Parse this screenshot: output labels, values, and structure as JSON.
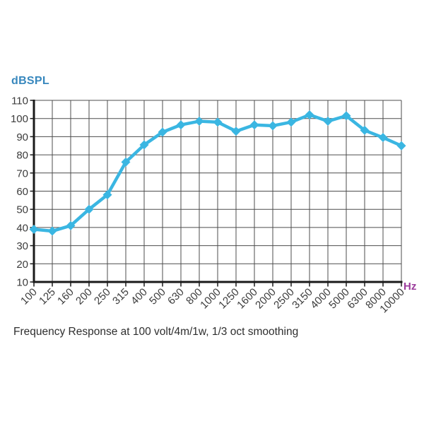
{
  "chart_data": {
    "type": "line",
    "title": "Frequency Response at 100 volt/4m/1w, 1/3 oct smoothing",
    "xlabel": "Hz",
    "ylabel": "dBSPL",
    "categories": [
      "100",
      "125",
      "160",
      "200",
      "250",
      "315",
      "400",
      "500",
      "630",
      "800",
      "1000",
      "1250",
      "1600",
      "2000",
      "2500",
      "3150",
      "4000",
      "5000",
      "6300",
      "8000",
      "10000"
    ],
    "values": [
      39,
      38,
      41,
      50,
      58,
      76,
      85.5,
      92.5,
      96.5,
      98.5,
      98,
      93,
      96.5,
      96,
      98,
      102,
      98.5,
      101.5,
      93.5,
      89.5,
      85
    ],
    "ylim": [
      10,
      110
    ],
    "y_tick_step": 10,
    "grid": true,
    "legend": "none",
    "marker": "diamond",
    "colors": {
      "line": "#3ab6e2",
      "grid": "#4d4d4d",
      "axis": "#1a1a1a",
      "tick_labels": "#3c3c3c",
      "ylabel_text": "#3787bd",
      "xlabel_text": "#9c3d9c",
      "caption_text": "#2e2e2e",
      "background": "#ffffff"
    }
  }
}
